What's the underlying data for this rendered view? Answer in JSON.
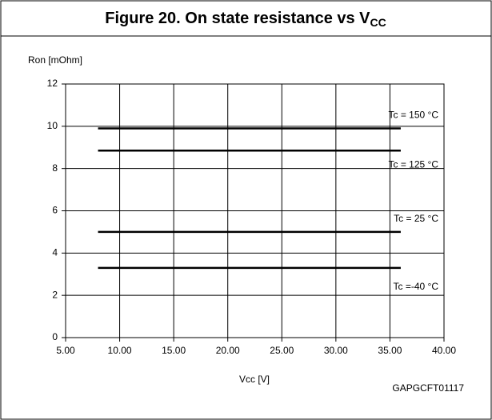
{
  "chart_data": {
    "type": "line",
    "title": "Figure 20. On state resistance vs V",
    "title_subscript": "CC",
    "y_label": "Ron [mOhm]",
    "x_label": "Vcc [V]",
    "code": "GAPGCFT01117",
    "x": [
      8,
      36
    ],
    "series": [
      {
        "name": "Tc = 150 °C",
        "color": "#000000",
        "values": [
          9.9,
          9.9
        ]
      },
      {
        "name": "Tc = 125 °C",
        "color": "#000000",
        "values": [
          8.85,
          8.85
        ]
      },
      {
        "name": "Tc = 25 °C",
        "color": "#000000",
        "values": [
          5.0,
          5.0
        ]
      },
      {
        "name": "Tc =-40  °C",
        "color": "#000000",
        "values": [
          3.3,
          3.3
        ]
      }
    ],
    "xlim": [
      5,
      40
    ],
    "xticks": [
      {
        "value": 5,
        "label": "5.00"
      },
      {
        "value": 10,
        "label": "10.00"
      },
      {
        "value": 15,
        "label": "15.00"
      },
      {
        "value": 20,
        "label": "20.00"
      },
      {
        "value": 25,
        "label": "25.00"
      },
      {
        "value": 30,
        "label": "30.00"
      },
      {
        "value": 35,
        "label": "35.00"
      },
      {
        "value": 40,
        "label": "40.00"
      }
    ],
    "ylim": [
      0,
      12
    ],
    "yticks": [
      0,
      2,
      4,
      6,
      8,
      10,
      12
    ],
    "grid": true
  }
}
